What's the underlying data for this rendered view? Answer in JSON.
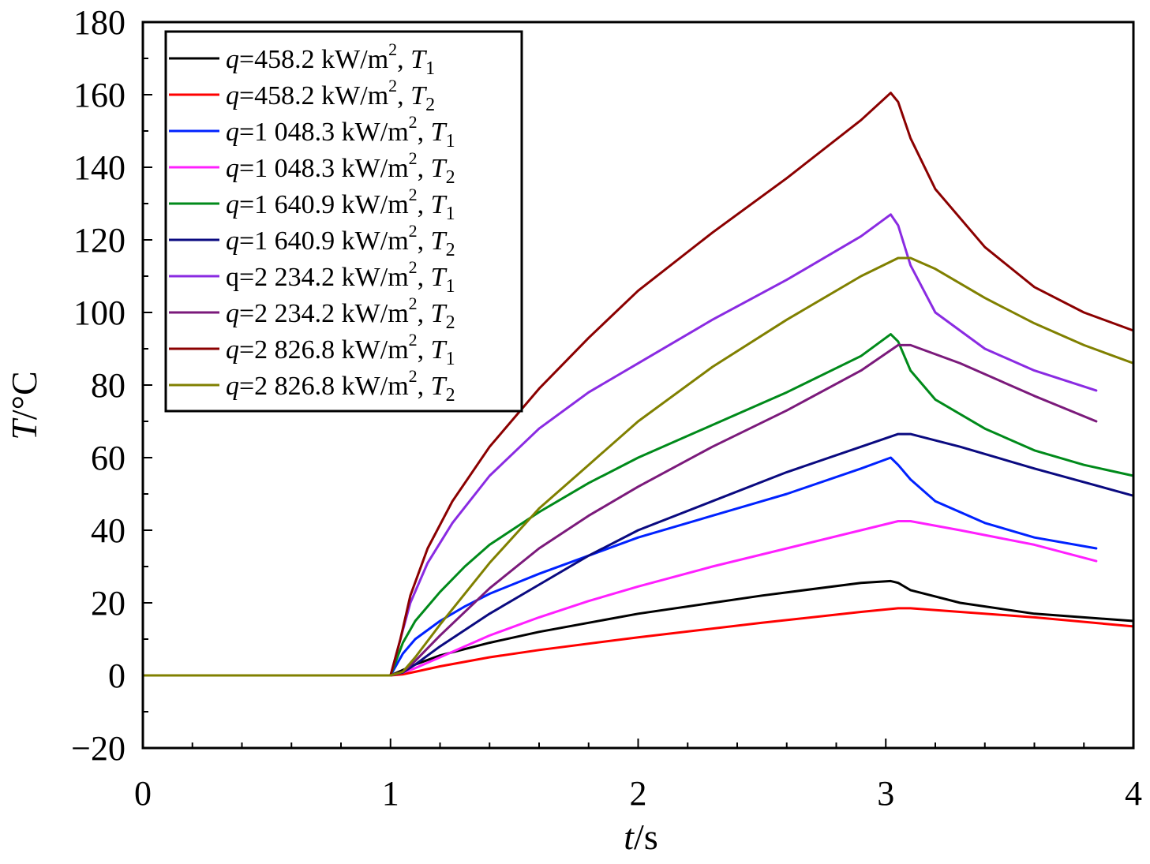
{
  "chart_data": {
    "type": "line",
    "xlabel": {
      "var": "t",
      "unit": "/s"
    },
    "ylabel": {
      "var": "T",
      "unit": "/°C"
    },
    "xlim": [
      0,
      4
    ],
    "ylim": [
      -20,
      180
    ],
    "xticks": [
      0,
      1,
      2,
      3,
      4
    ],
    "xtick_labels": [
      "0",
      "1",
      "2",
      "3",
      "4"
    ],
    "yticks": [
      -20,
      0,
      20,
      40,
      60,
      80,
      100,
      120,
      140,
      160,
      180
    ],
    "ytick_labels": [
      "−20",
      "0",
      "20",
      "40",
      "60",
      "80",
      "100",
      "120",
      "140",
      "160",
      "180"
    ],
    "grid": false,
    "legend_position": "top-left",
    "series": [
      {
        "name": "q=458.2 kW/m2, T1",
        "prefix": "q",
        "value": "=458.2 kW/m",
        "sup": "2",
        "var": "T",
        "sub": "1",
        "color": "#000000",
        "x": [
          0,
          1.0,
          1.05,
          1.1,
          1.2,
          1.4,
          1.6,
          2.0,
          2.5,
          2.9,
          3.02,
          3.05,
          3.1,
          3.3,
          3.6,
          4.0
        ],
        "y": [
          0,
          0,
          1.5,
          3,
          5.5,
          9,
          12,
          17,
          22,
          25.5,
          26,
          25.5,
          23.5,
          20,
          17,
          15
        ]
      },
      {
        "name": "q=458.2 kW/m2, T2",
        "prefix": "q",
        "value": "=458.2 kW/m",
        "sup": "2",
        "var": "T",
        "sub": "2",
        "color": "#ff0000",
        "x": [
          0,
          1.0,
          1.05,
          1.1,
          1.2,
          1.4,
          1.6,
          2.0,
          2.5,
          2.9,
          3.05,
          3.1,
          3.3,
          3.6,
          4.0
        ],
        "y": [
          0,
          0,
          0.3,
          1,
          2.5,
          5,
          7,
          10.5,
          14.5,
          17.5,
          18.5,
          18.5,
          17.5,
          16,
          13.5
        ]
      },
      {
        "name": "q=1 048.3 kW/m2, T1",
        "prefix": "q",
        "value": "=1 048.3 kW/m",
        "sup": "2",
        "var": "T",
        "sub": "1",
        "color": "#0022ff",
        "x": [
          0,
          1.0,
          1.05,
          1.1,
          1.2,
          1.3,
          1.4,
          1.6,
          1.8,
          2.0,
          2.3,
          2.6,
          2.9,
          3.02,
          3.05,
          3.1,
          3.2,
          3.4,
          3.6,
          3.85
        ],
        "y": [
          0,
          0,
          6,
          10,
          15,
          19,
          22.5,
          28,
          33,
          38,
          44,
          50,
          57,
          60,
          58,
          54,
          48,
          42,
          38,
          35
        ]
      },
      {
        "name": "q=1 048.3 kW/m2, T2",
        "prefix": "q",
        "value": "=1 048.3 kW/m",
        "sup": "2",
        "var": "T",
        "sub": "2",
        "color": "#ff20ff",
        "x": [
          0,
          1.0,
          1.05,
          1.1,
          1.2,
          1.4,
          1.6,
          1.8,
          2.0,
          2.3,
          2.6,
          2.9,
          3.05,
          3.1,
          3.3,
          3.6,
          3.85
        ],
        "y": [
          0,
          0,
          0.8,
          2,
          5,
          11,
          16,
          20.5,
          24.5,
          30,
          35,
          40,
          42.5,
          42.5,
          40,
          36,
          31.5
        ]
      },
      {
        "name": "q=1 640.9 kW/m2, T1",
        "prefix": "q",
        "value": "=1 640.9 kW/m",
        "sup": "2",
        "var": "T",
        "sub": "1",
        "color": "#008a1a",
        "x": [
          0,
          1.0,
          1.05,
          1.1,
          1.2,
          1.3,
          1.4,
          1.6,
          1.8,
          2.0,
          2.3,
          2.6,
          2.9,
          3.02,
          3.05,
          3.1,
          3.2,
          3.4,
          3.6,
          3.8,
          4.0
        ],
        "y": [
          0,
          0,
          9,
          15,
          23,
          30,
          36,
          45,
          53,
          60,
          69,
          78,
          88,
          94,
          92,
          84,
          76,
          68,
          62,
          58,
          55
        ]
      },
      {
        "name": "q=1 640.9 kW/m2, T2",
        "prefix": "q",
        "value": "=1 640.9 kW/m",
        "sup": "2",
        "var": "T",
        "sub": "2",
        "color": "#0a0a80",
        "x": [
          0,
          1.0,
          1.05,
          1.1,
          1.2,
          1.4,
          1.6,
          1.8,
          2.0,
          2.3,
          2.6,
          2.9,
          3.05,
          3.1,
          3.3,
          3.6,
          4.0
        ],
        "y": [
          0,
          0,
          0.8,
          3,
          8,
          17,
          25,
          33,
          40,
          48,
          56,
          63,
          66.5,
          66.5,
          63,
          57,
          49.5
        ]
      },
      {
        "name": "q=2 234.2 kW/m2, T1",
        "prefix": "",
        "value": "q=2 234.2 kW/m",
        "sup": "2",
        "var": "T",
        "sub": "1",
        "color": "#8a2be2",
        "x": [
          0,
          1.0,
          1.04,
          1.08,
          1.15,
          1.25,
          1.4,
          1.6,
          1.8,
          2.0,
          2.3,
          2.6,
          2.9,
          3.02,
          3.05,
          3.1,
          3.2,
          3.4,
          3.6,
          3.85
        ],
        "y": [
          0,
          0,
          10,
          20,
          31,
          42,
          55,
          68,
          78,
          86,
          98,
          109,
          121,
          127,
          124,
          113,
          100,
          90,
          84,
          78.5
        ]
      },
      {
        "name": "q=2 234.2 kW/m2, T2",
        "prefix": "q",
        "value": "=2 234.2 kW/m",
        "sup": "2",
        "var": "T",
        "sub": "2",
        "color": "#7b1a7b",
        "x": [
          0,
          1.0,
          1.05,
          1.1,
          1.2,
          1.4,
          1.6,
          1.8,
          2.0,
          2.3,
          2.6,
          2.9,
          3.05,
          3.1,
          3.3,
          3.6,
          3.85
        ],
        "y": [
          0,
          0,
          1,
          4,
          11,
          24,
          35,
          44,
          52,
          63,
          73,
          84,
          91,
          91,
          86,
          77,
          70
        ]
      },
      {
        "name": "q=2 826.8 kW/m2, T1",
        "prefix": "q",
        "value": "=2 826.8 kW/m",
        "sup": "2",
        "var": "T",
        "sub": "1",
        "color": "#8b0000",
        "x": [
          0,
          1.0,
          1.04,
          1.08,
          1.15,
          1.25,
          1.4,
          1.6,
          1.8,
          2.0,
          2.3,
          2.6,
          2.9,
          3.02,
          3.05,
          3.1,
          3.2,
          3.4,
          3.6,
          3.8,
          4.0
        ],
        "y": [
          0,
          0,
          10,
          22,
          35,
          48,
          63,
          79,
          93,
          106,
          122,
          137,
          153,
          160.5,
          158,
          148,
          134,
          118,
          107,
          100,
          95
        ]
      },
      {
        "name": "q=2 826.8 kW/m2, T2",
        "prefix": "q",
        "value": "=2 826.8 kW/m",
        "sup": "2",
        "var": "T",
        "sub": "2",
        "color": "#808000",
        "x": [
          0,
          1.0,
          1.05,
          1.1,
          1.2,
          1.4,
          1.6,
          1.8,
          2.0,
          2.3,
          2.6,
          2.9,
          3.05,
          3.1,
          3.2,
          3.4,
          3.6,
          3.8,
          4.0
        ],
        "y": [
          0,
          0,
          1,
          5,
          14,
          31,
          46,
          58,
          70,
          85,
          98,
          110,
          115,
          115,
          112,
          104,
          97,
          91,
          86
        ]
      }
    ]
  }
}
